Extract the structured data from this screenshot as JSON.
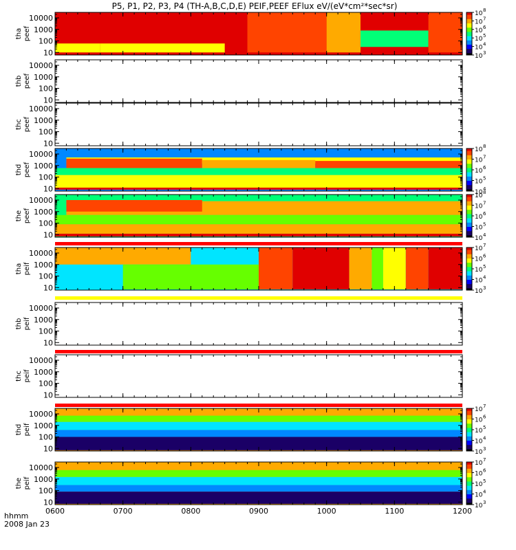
{
  "title": "P5, P1, P2, P3, P4 (TH-A,B,C,D,E) PEIF,PEEF EFlux eV/(eV*cm²*sec*sr)",
  "footer": {
    "axis_unit": "hhmm",
    "date": "2008 Jan 23"
  },
  "chart_data": {
    "type": "heatmap",
    "title": "P5, P1, P2, P3, P4 (TH-A,B,C,D,E) PEIF,PEEF EFlux eV/(eV*cm²*sec*sr)",
    "x_axis": {
      "ticks": [
        "0600",
        "0700",
        "0800",
        "0900",
        "1000",
        "1100",
        "1200"
      ],
      "range": [
        "0600",
        "1200"
      ],
      "label": "hhmm",
      "date": "2008 Jan 23"
    },
    "y_axis": {
      "scale": "log",
      "unit": "eV",
      "ticks": [
        "10",
        "100",
        "1000",
        "10000"
      ]
    },
    "panels": [
      {
        "id": "tha-peef",
        "label_lines": [
          "tha",
          "peef"
        ],
        "has_data": true,
        "colorbar": [
          3,
          8
        ],
        "description": "electron energy flux; saturated red above ~100 eV until ~0850, gradual fade to orange/yellow, green-cyan island near 1030-1130",
        "bands": [
          {
            "x": [
              "0600",
              "0850"
            ],
            "e": [
              100,
              30000
            ],
            "level": 8
          },
          {
            "x": [
              "0600",
              "0640"
            ],
            "e": [
              10,
              60
            ],
            "level": 6.3
          },
          {
            "x": [
              "0640",
              "0830"
            ],
            "e": [
              10,
              60
            ],
            "level": 6.7
          },
          {
            "x": [
              "0850",
              "1000"
            ],
            "e": [
              10,
              30000
            ],
            "level": 7.3
          },
          {
            "x": [
              "1000",
              "1030"
            ],
            "e": [
              10,
              30000
            ],
            "level": 6.9
          },
          {
            "x": [
              "1030",
              "1130"
            ],
            "e": [
              30,
              800
            ],
            "level": 5.3
          },
          {
            "x": [
              "1130",
              "1200"
            ],
            "e": [
              10,
              30000
            ],
            "level": 7.7
          }
        ]
      },
      {
        "id": "thb-peef",
        "label_lines": [
          "thb",
          "peef"
        ],
        "has_data": false,
        "colorbar": null,
        "bands": []
      },
      {
        "id": "thc-peef",
        "label_lines": [
          "thc",
          "peef"
        ],
        "has_data": false,
        "colorbar": null,
        "bands": []
      },
      {
        "id": "thd-peef",
        "label_lines": [
          "thd",
          "peef"
        ],
        "has_data": true,
        "colorbar": [
          4,
          8
        ],
        "description": "orange/red band 50-5000 eV between green layers, dark-red strip near 10 eV",
        "bands": [
          {
            "x": [
              "0600",
              "1200"
            ],
            "e": [
              5000,
              30000
            ],
            "level": 5.2
          },
          {
            "x": [
              "0610",
              "1200"
            ],
            "e": [
              1500,
              5000
            ],
            "level": 6.8
          },
          {
            "x": [
              "0610",
              "0810"
            ],
            "e": [
              600,
              4000
            ],
            "level": 7.6
          },
          {
            "x": [
              "0810",
              "0950"
            ],
            "e": [
              400,
              3000
            ],
            "level": 7.2
          },
          {
            "x": [
              "0950",
              "1200"
            ],
            "e": [
              300,
              2500
            ],
            "level": 7.4
          },
          {
            "x": [
              "0600",
              "1200"
            ],
            "e": [
              150,
              600
            ],
            "level": 5.8
          },
          {
            "x": [
              "0600",
              "1200"
            ],
            "e": [
              12,
              150
            ],
            "level": 6.9
          },
          {
            "x": [
              "0600",
              "1200"
            ],
            "e": [
              8,
              12
            ],
            "level": 8
          }
        ]
      },
      {
        "id": "the-peef",
        "label_lines": [
          "the",
          "peef"
        ],
        "has_data": true,
        "colorbar": [
          4,
          8
        ],
        "description": "similar to thd with orange core and green upper layer",
        "bands": [
          {
            "x": [
              "0600",
              "1200"
            ],
            "e": [
              8000,
              30000
            ],
            "level": 5.8
          },
          {
            "x": [
              "0610",
              "1200"
            ],
            "e": [
              500,
              8000
            ],
            "level": 7.3
          },
          {
            "x": [
              "0610",
              "0810"
            ],
            "e": [
              1000,
              10000
            ],
            "level": 7.7
          },
          {
            "x": [
              "0600",
              "1200"
            ],
            "e": [
              80,
              500
            ],
            "level": 6.2
          },
          {
            "x": [
              "0600",
              "1200"
            ],
            "e": [
              12,
              80
            ],
            "level": 7
          },
          {
            "x": [
              "0600",
              "1200"
            ],
            "e": [
              7,
              12
            ],
            "level": 8
          }
        ]
      },
      {
        "id": "tha-peif",
        "label_lines": [
          "tha",
          "peif"
        ],
        "has_data": true,
        "colorbar": [
          3,
          7
        ],
        "description": "ion energy flux; green/cyan low energies early, red column 0930-1020, yellow/green stripes 1040-1110, red near 1130-1200",
        "bands": [
          {
            "x": [
              "0600",
              "0700"
            ],
            "e": [
              7,
              1000
            ],
            "level": 4.6
          },
          {
            "x": [
              "0600",
              "0800"
            ],
            "e": [
              1000,
              30000
            ],
            "level": 6.3
          },
          {
            "x": [
              "0700",
              "0900"
            ],
            "e": [
              7,
              1000
            ],
            "level": 5.6
          },
          {
            "x": [
              "0900",
              "0930"
            ],
            "e": [
              7,
              30000
            ],
            "level": 6.4
          },
          {
            "x": [
              "0930",
              "1020"
            ],
            "e": [
              7,
              30000
            ],
            "level": 7
          },
          {
            "x": [
              "1020",
              "1040"
            ],
            "e": [
              7,
              30000
            ],
            "level": 6.2
          },
          {
            "x": [
              "1040",
              "1050"
            ],
            "e": [
              7,
              30000
            ],
            "level": 5.2
          },
          {
            "x": [
              "1050",
              "1110"
            ],
            "e": [
              7,
              30000
            ],
            "level": 5.8
          },
          {
            "x": [
              "1110",
              "1130"
            ],
            "e": [
              7,
              30000
            ],
            "level": 6.5
          },
          {
            "x": [
              "1130",
              "1200"
            ],
            "e": [
              7,
              30000
            ],
            "level": 7
          }
        ]
      },
      {
        "id": "thb-peif",
        "label_lines": [
          "thb",
          "peif"
        ],
        "has_data": false,
        "colorbar": null,
        "bands": []
      },
      {
        "id": "thc-peif",
        "label_lines": [
          "thc",
          "peif"
        ],
        "has_data": false,
        "colorbar": null,
        "bands": []
      },
      {
        "id": "thd-peif",
        "label_lines": [
          "thd",
          "peif"
        ],
        "has_data": true,
        "colorbar": [
          3,
          7
        ],
        "description": "yellow/orange band at top ~10000 eV, green/cyan below, noisy blue/black low energies",
        "bands": [
          {
            "x": [
              "0600",
              "1200"
            ],
            "e": [
              7000,
              30000
            ],
            "level": 6.3
          },
          {
            "x": [
              "0600",
              "1200"
            ],
            "e": [
              2000,
              7000
            ],
            "level": 5.5
          },
          {
            "x": [
              "0600",
              "1200"
            ],
            "e": [
              400,
              2000
            ],
            "level": 4.7
          },
          {
            "x": [
              "0600",
              "1200"
            ],
            "e": [
              100,
              400
            ],
            "level": 4
          },
          {
            "x": [
              "0600",
              "1200"
            ],
            "e": [
              7,
              100
            ],
            "level": 3.2
          }
        ]
      },
      {
        "id": "the-peif",
        "label_lines": [
          "the",
          "peif"
        ],
        "has_data": true,
        "colorbar": [
          3,
          7
        ],
        "description": "yellow/orange band near 10000 eV, green/cyan mid, noisy blue low energies",
        "bands": [
          {
            "x": [
              "0600",
              "1200"
            ],
            "e": [
              6000,
              30000
            ],
            "level": 6.2
          },
          {
            "x": [
              "0600",
              "1200"
            ],
            "e": [
              1500,
              6000
            ],
            "level": 5.5
          },
          {
            "x": [
              "0600",
              "1200"
            ],
            "e": [
              300,
              1500
            ],
            "level": 4.7
          },
          {
            "x": [
              "0600",
              "1200"
            ],
            "e": [
              80,
              300
            ],
            "level": 4
          },
          {
            "x": [
              "0600",
              "1200"
            ],
            "e": [
              7,
              80
            ],
            "level": 3.3
          }
        ]
      }
    ]
  },
  "colors": {
    "axis": "#000000",
    "background": "#ffffff",
    "separator_red": "#ff0000",
    "separator_yellow": "#ffff00"
  },
  "colormap": [
    "#000000",
    "#1a0066",
    "#0000ff",
    "#0088ff",
    "#00e5ff",
    "#00ff77",
    "#66ff00",
    "#ffff00",
    "#ffaa00",
    "#ff4400",
    "#e00000"
  ]
}
